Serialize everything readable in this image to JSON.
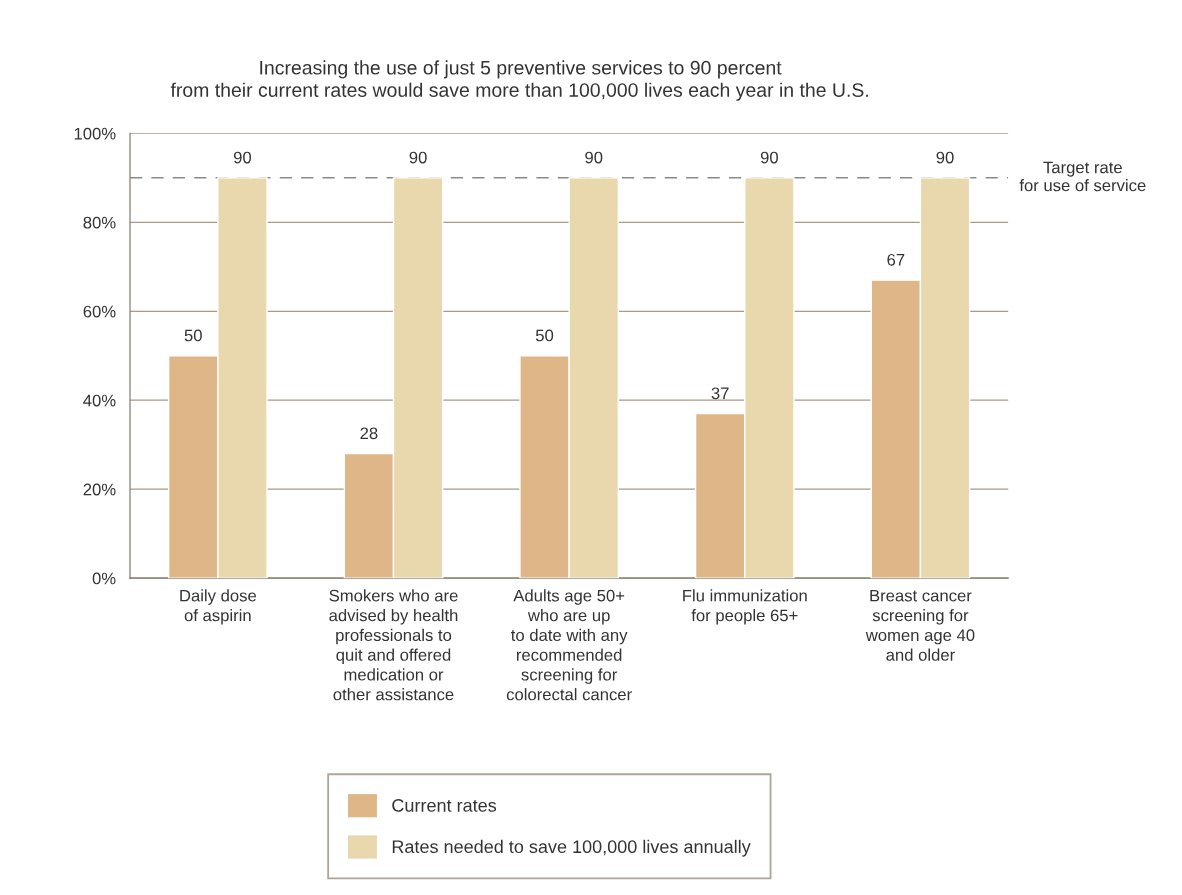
{
  "chart_data": {
    "type": "bar",
    "title": "Increasing the use of just 5 preventive services to 90 percent\nfrom their current rates would save more than 100,000 lives each year in the U.S.",
    "categories": [
      "Daily dose\nof aspirin",
      "Smokers who are\nadvised by health\nprofessionals to\nquit and offered\nmedication or\nother assistance",
      "Adults age 50+\nwho are up\nto date with any\nrecommended\nscreening for\ncolorectal cancer",
      "Flu immunization\nfor people 65+",
      "Breast cancer\nscreening for\nwomen age 40\nand older"
    ],
    "series": [
      {
        "name": "Current rates",
        "color": "#deb688",
        "values": [
          50,
          28,
          50,
          37,
          67
        ]
      },
      {
        "name": "Rates needed to save 100,000 lives annually",
        "color": "#e9d7ad",
        "values": [
          90,
          90,
          90,
          90,
          90
        ]
      }
    ],
    "ylim": [
      0,
      100
    ],
    "yticks": [
      {
        "value": 0,
        "label": "0%"
      },
      {
        "value": 20,
        "label": "20%"
      },
      {
        "value": 40,
        "label": "40%"
      },
      {
        "value": 60,
        "label": "60%"
      },
      {
        "value": 80,
        "label": "80%"
      },
      {
        "value": 100,
        "label": "100%"
      }
    ],
    "ref_lines": [
      {
        "axis": "y",
        "value": 90,
        "label": "Target rate\nfor use of service",
        "color": "#8a8a8a",
        "line_style": "dashed"
      }
    ],
    "data_labels": true,
    "grid": "y",
    "legend": "bottom"
  }
}
